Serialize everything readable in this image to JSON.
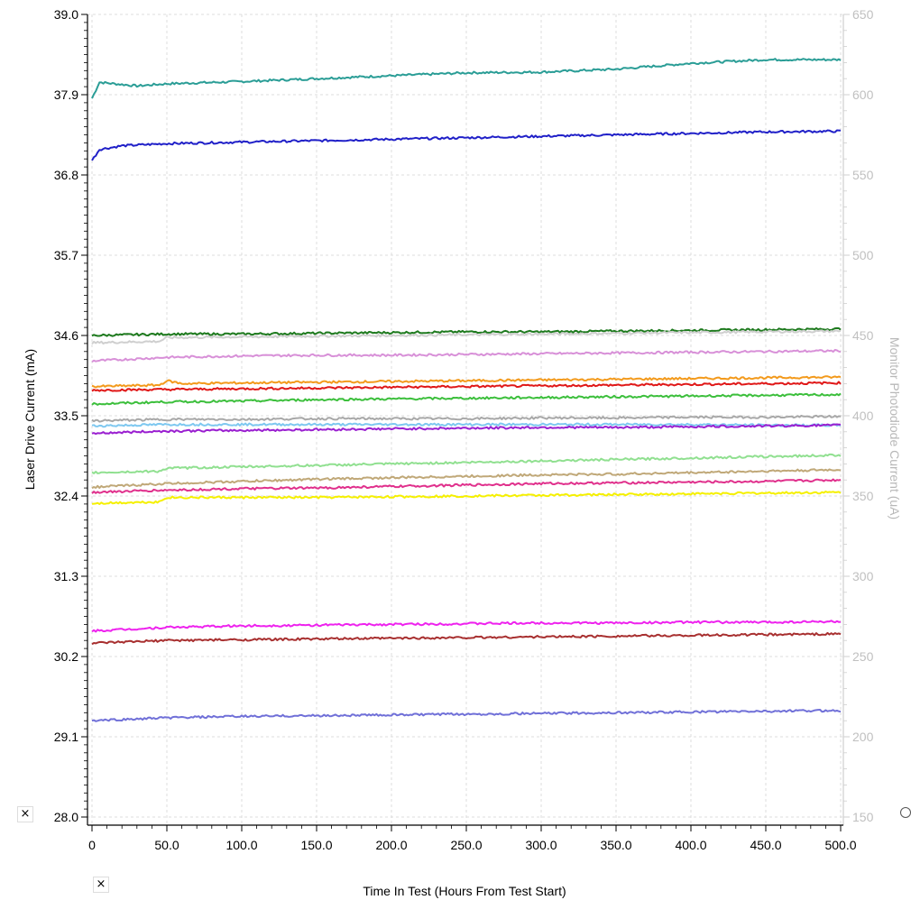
{
  "chart_data": {
    "type": "line",
    "title": "",
    "xlabel": "Time In Test (Hours From Test Start)",
    "ylabel": "Laser Drive Current (mA)",
    "y2label": "Monitor Photodiode Current (uA)",
    "xlim": [
      0,
      500
    ],
    "ylim": [
      28.0,
      39.0
    ],
    "y2lim": [
      150,
      650
    ],
    "x_ticks": [
      "0",
      "50.0",
      "100.0",
      "150.0",
      "200.0",
      "250.0",
      "300.0",
      "350.0",
      "400.0",
      "450.0",
      "500.0"
    ],
    "x_tick_values": [
      0,
      50,
      100,
      150,
      200,
      250,
      300,
      350,
      400,
      450,
      500
    ],
    "y_ticks": [
      "28.0",
      "29.1",
      "30.2",
      "31.3",
      "32.4",
      "33.5",
      "34.6",
      "35.7",
      "36.8",
      "37.9",
      "39.0"
    ],
    "y_tick_values": [
      28.0,
      29.1,
      30.2,
      31.3,
      32.4,
      33.5,
      34.6,
      35.7,
      36.8,
      37.9,
      39.0
    ],
    "y2_ticks": [
      "150",
      "200",
      "250",
      "300",
      "350",
      "400",
      "450",
      "500",
      "550",
      "600",
      "650"
    ],
    "y2_tick_values": [
      150,
      200,
      250,
      300,
      350,
      400,
      450,
      500,
      550,
      600,
      650
    ],
    "grid": true,
    "legend": "none",
    "series": [
      {
        "color": "#2a9d96",
        "x": [
          0,
          5,
          30,
          50,
          100,
          150,
          200,
          250,
          300,
          350,
          400,
          450,
          500
        ],
        "y": [
          37.85,
          38.07,
          38.02,
          38.05,
          38.08,
          38.12,
          38.16,
          38.2,
          38.21,
          38.25,
          38.33,
          38.38,
          38.38
        ]
      },
      {
        "color": "#2020c8",
        "x": [
          0,
          5,
          20,
          50,
          100,
          150,
          200,
          250,
          300,
          350,
          400,
          450,
          500
        ],
        "y": [
          37.0,
          37.15,
          37.2,
          37.23,
          37.25,
          37.27,
          37.29,
          37.31,
          37.33,
          37.35,
          37.37,
          37.39,
          37.4
        ]
      },
      {
        "color": "#1e7a1e",
        "x": [
          0,
          50,
          100,
          150,
          200,
          250,
          300,
          350,
          400,
          450,
          500
        ],
        "y": [
          34.6,
          34.62,
          34.62,
          34.63,
          34.64,
          34.65,
          34.65,
          34.66,
          34.67,
          34.68,
          34.69
        ]
      },
      {
        "color": "#cfcfcf",
        "x": [
          0,
          45,
          50,
          100,
          150,
          200,
          250,
          300,
          350,
          400,
          450,
          500
        ],
        "y": [
          34.5,
          34.52,
          34.57,
          34.58,
          34.59,
          34.6,
          34.61,
          34.62,
          34.63,
          34.64,
          34.65,
          34.66
        ]
      },
      {
        "color": "#d890d8",
        "x": [
          0,
          50,
          100,
          150,
          200,
          250,
          300,
          350,
          400,
          450,
          500
        ],
        "y": [
          34.25,
          34.3,
          34.32,
          34.33,
          34.33,
          34.34,
          34.35,
          34.36,
          34.37,
          34.38,
          34.39
        ]
      },
      {
        "color": "#f39a1c",
        "x": [
          0,
          45,
          50,
          60,
          100,
          150,
          200,
          250,
          300,
          350,
          400,
          450,
          500
        ],
        "y": [
          33.9,
          33.92,
          33.98,
          33.94,
          33.95,
          33.96,
          33.97,
          33.98,
          33.99,
          34.0,
          34.01,
          34.02,
          34.03
        ]
      },
      {
        "color": "#e01818",
        "x": [
          0,
          50,
          100,
          150,
          200,
          250,
          300,
          350,
          400,
          450,
          500
        ],
        "y": [
          33.85,
          33.86,
          33.87,
          33.88,
          33.89,
          33.9,
          33.91,
          33.92,
          33.93,
          33.94,
          33.95
        ]
      },
      {
        "color": "#3cbf3c",
        "x": [
          0,
          50,
          100,
          150,
          200,
          250,
          300,
          350,
          400,
          450,
          500
        ],
        "y": [
          33.66,
          33.69,
          33.7,
          33.72,
          33.73,
          33.74,
          33.75,
          33.76,
          33.77,
          33.78,
          33.79
        ]
      },
      {
        "color": "#a8a8a8",
        "x": [
          0,
          50,
          100,
          150,
          200,
          250,
          300,
          350,
          400,
          450,
          500
        ],
        "y": [
          33.43,
          33.45,
          33.45,
          33.46,
          33.46,
          33.46,
          33.47,
          33.47,
          33.48,
          33.48,
          33.49
        ]
      },
      {
        "color": "#7ec8f0",
        "x": [
          0,
          50,
          100,
          150,
          200,
          250,
          300,
          350,
          400,
          450,
          500
        ],
        "y": [
          33.36,
          33.38,
          33.38,
          33.38,
          33.38,
          33.38,
          33.38,
          33.38,
          33.38,
          33.37,
          33.37
        ]
      },
      {
        "color": "#9a1fd0",
        "x": [
          0,
          50,
          100,
          150,
          200,
          250,
          300,
          350,
          400,
          450,
          500
        ],
        "y": [
          33.26,
          33.29,
          33.3,
          33.31,
          33.32,
          33.33,
          33.34,
          33.34,
          33.35,
          33.36,
          33.37
        ]
      },
      {
        "color": "#90e090",
        "x": [
          0,
          45,
          50,
          100,
          150,
          200,
          250,
          300,
          350,
          400,
          450,
          500
        ],
        "y": [
          32.72,
          32.74,
          32.78,
          32.8,
          32.82,
          32.84,
          32.86,
          32.88,
          32.9,
          32.92,
          32.94,
          32.96
        ]
      },
      {
        "color": "#c0a878",
        "x": [
          0,
          50,
          100,
          150,
          200,
          250,
          300,
          350,
          400,
          450,
          500
        ],
        "y": [
          32.52,
          32.57,
          32.6,
          32.63,
          32.65,
          32.67,
          32.69,
          32.7,
          32.72,
          32.74,
          32.76
        ]
      },
      {
        "color": "#e0308c",
        "x": [
          0,
          50,
          100,
          150,
          200,
          250,
          300,
          350,
          400,
          450,
          500
        ],
        "y": [
          32.45,
          32.48,
          32.5,
          32.51,
          32.53,
          32.55,
          32.57,
          32.58,
          32.59,
          32.6,
          32.62
        ]
      },
      {
        "color": "#f5f000",
        "x": [
          0,
          45,
          50,
          100,
          150,
          200,
          250,
          300,
          350,
          400,
          450,
          500
        ],
        "y": [
          32.3,
          32.32,
          32.38,
          32.38,
          32.38,
          32.39,
          32.4,
          32.41,
          32.42,
          32.43,
          32.44,
          32.45
        ]
      },
      {
        "color": "#ee22ee",
        "x": [
          0,
          50,
          100,
          150,
          200,
          250,
          300,
          350,
          400,
          450,
          500
        ],
        "y": [
          30.55,
          30.6,
          30.62,
          30.63,
          30.64,
          30.65,
          30.66,
          30.66,
          30.67,
          30.67,
          30.68
        ]
      },
      {
        "color": "#a83030",
        "x": [
          0,
          50,
          100,
          150,
          200,
          250,
          300,
          350,
          400,
          450,
          500
        ],
        "y": [
          30.38,
          30.42,
          30.43,
          30.44,
          30.45,
          30.46,
          30.47,
          30.48,
          30.49,
          30.5,
          30.51
        ]
      },
      {
        "color": "#7070d8",
        "x": [
          0,
          50,
          100,
          150,
          200,
          250,
          300,
          350,
          400,
          450,
          500
        ],
        "y": [
          29.32,
          29.36,
          29.38,
          29.39,
          29.4,
          29.41,
          29.42,
          29.43,
          29.44,
          29.45,
          29.46
        ]
      }
    ]
  },
  "ui": {
    "marker_x": "×"
  }
}
